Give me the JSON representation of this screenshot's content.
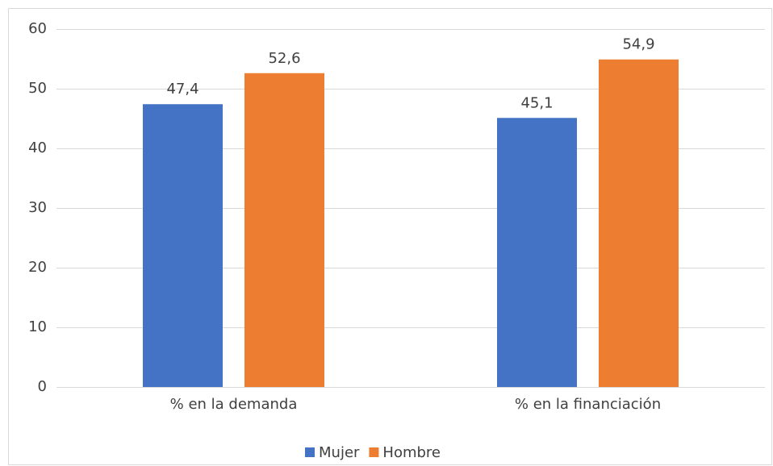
{
  "chart_data": {
    "type": "bar",
    "categories": [
      "% en la demanda",
      "% en la financiación"
    ],
    "series": [
      {
        "name": "Mujer",
        "color": "#4472c4",
        "values": [
          47.4,
          45.1
        ],
        "value_labels": [
          "47,4",
          "45,1"
        ]
      },
      {
        "name": "Hombre",
        "color": "#ed7d31",
        "values": [
          52.6,
          54.9
        ],
        "value_labels": [
          "52,6",
          "54,9"
        ]
      }
    ],
    "ylim": [
      0,
      60
    ],
    "yticks": [
      0,
      10,
      20,
      30,
      40,
      50,
      60
    ],
    "grid": true,
    "legend": "bottom"
  }
}
